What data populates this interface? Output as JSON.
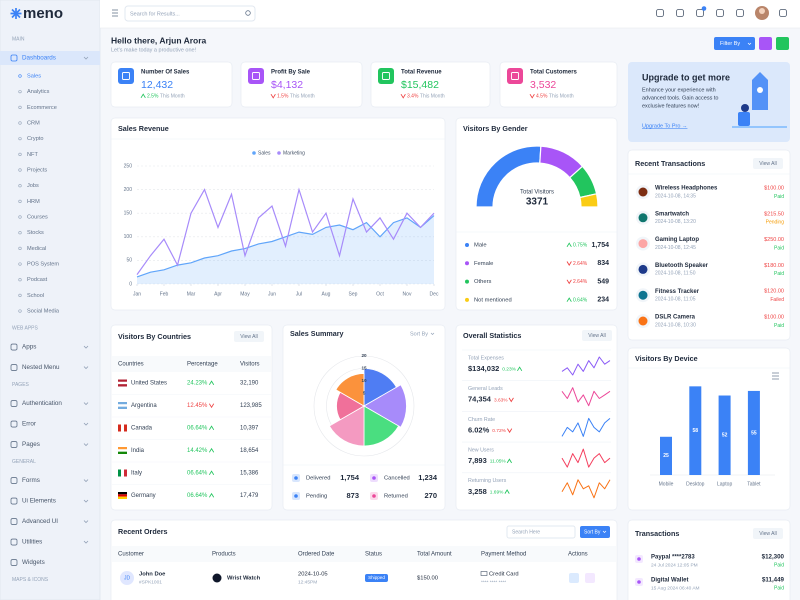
{
  "sidebar": {
    "logo": "meno",
    "sections": [
      {
        "title": "MAIN",
        "items": [
          {
            "label": "Dashboards",
            "active": true,
            "has_submenu": true,
            "children": [
              {
                "label": "Sales",
                "active": true
              },
              {
                "label": "Analytics"
              },
              {
                "label": "Ecommerce"
              },
              {
                "label": "CRM"
              },
              {
                "label": "Crypto"
              },
              {
                "label": "NFT"
              },
              {
                "label": "Projects"
              },
              {
                "label": "Jobs"
              },
              {
                "label": "HRM"
              },
              {
                "label": "Courses"
              },
              {
                "label": "Stocks"
              },
              {
                "label": "Medical"
              },
              {
                "label": "POS System"
              },
              {
                "label": "Podcast"
              },
              {
                "label": "School"
              },
              {
                "label": "Social Media"
              }
            ]
          }
        ]
      },
      {
        "title": "WEB APPS",
        "items": [
          {
            "label": "Apps",
            "has_submenu": true
          },
          {
            "label": "Nested Menu",
            "has_submenu": true
          }
        ]
      },
      {
        "title": "PAGES",
        "items": [
          {
            "label": "Authentication",
            "has_submenu": true
          },
          {
            "label": "Error",
            "has_submenu": true
          },
          {
            "label": "Pages",
            "has_submenu": true
          }
        ]
      },
      {
        "title": "GENERAL",
        "items": [
          {
            "label": "Forms",
            "has_submenu": true
          },
          {
            "label": "Ui Elements",
            "has_submenu": true
          },
          {
            "label": "Advanced UI",
            "has_submenu": true
          },
          {
            "label": "Utilities",
            "has_submenu": true
          },
          {
            "label": "Widgets",
            "has_submenu": false
          }
        ]
      },
      {
        "title": "MAPS & ICONS"
      }
    ]
  },
  "header": {
    "search_placeholder": "Search for Results..."
  },
  "greeting": {
    "title": "Hello there, Arjun Arora",
    "subtitle": "Let's make today a productive one!",
    "filter_button": "Filter By"
  },
  "stats": [
    {
      "title": "Number Of Sales",
      "value": "12,432",
      "change": "2.5%",
      "trend": "up",
      "period": "This Month",
      "color": "#3b82f6"
    },
    {
      "title": "Profit By Sale",
      "value": "$4,132",
      "change": "1.5%",
      "trend": "down",
      "period": "This Month",
      "color": "#a855f7"
    },
    {
      "title": "Total Revenue",
      "value": "$15,482",
      "change": "3.4%",
      "trend": "down",
      "period": "This Month",
      "color": "#22c55e"
    },
    {
      "title": "Total Customers",
      "value": "3,532",
      "change": "4.5%",
      "trend": "down",
      "period": "This Month",
      "color": "#ec4899"
    }
  ],
  "upgrade": {
    "title": "Upgrade to get more",
    "lines": [
      "Enhance your experience with",
      "advanced tools. Gain access to",
      "exclusive features now!"
    ],
    "link": "Upgrade To Pro →"
  },
  "sales_revenue": {
    "type": "line",
    "title": "Sales Revenue",
    "x": [
      0,
      0.5,
      1,
      1.5,
      2,
      2.5,
      3,
      3.5,
      4,
      4.5,
      5,
      5.5,
      6,
      6.5,
      7,
      7.5,
      8,
      8.5,
      9,
      9.5,
      10,
      10.5,
      11
    ],
    "xlim": [
      0,
      11
    ],
    "xticks": [
      {
        "value": 0,
        "label": "Jan"
      },
      {
        "value": 1,
        "label": "Feb"
      },
      {
        "value": 2,
        "label": "Mar"
      },
      {
        "value": 3,
        "label": "Apr"
      },
      {
        "value": 4,
        "label": "May"
      },
      {
        "value": 5,
        "label": "Jun"
      },
      {
        "value": 6,
        "label": "Jul"
      },
      {
        "value": 7,
        "label": "Aug"
      },
      {
        "value": 8,
        "label": "Sep"
      },
      {
        "value": 9,
        "label": "Oct"
      },
      {
        "value": 10,
        "label": "Nov"
      },
      {
        "value": 11,
        "label": "Dec"
      }
    ],
    "ylim": [
      0,
      250
    ],
    "yticks": [
      0,
      50,
      100,
      150,
      200,
      250
    ],
    "grid": true,
    "series": [
      {
        "name": "Sales",
        "color": "#60a5fa",
        "area": true,
        "values": [
          15,
          25,
          30,
          40,
          45,
          55,
          60,
          70,
          75,
          85,
          90,
          100,
          110,
          105,
          120,
          125,
          115,
          130,
          100,
          130,
          140,
          120,
          145
        ]
      },
      {
        "name": "Marketing",
        "color": "#a78bfa",
        "area": false,
        "values": [
          20,
          60,
          95,
          40,
          150,
          200,
          120,
          190,
          60,
          140,
          165,
          80,
          200,
          110,
          150,
          60,
          180,
          110,
          140,
          95,
          150,
          120,
          150
        ]
      }
    ]
  },
  "visitors_gender": {
    "type": "gauge",
    "title": "Visitors By Gender",
    "center_label": "Total Visitors",
    "total": 3371,
    "categories": [
      "Male",
      "Female",
      "Others",
      "Not mentioned"
    ],
    "values": [
      1754,
      834,
      549,
      234
    ],
    "value_labels": [
      "1,754",
      "834",
      "549",
      "234"
    ],
    "colors": [
      "#3b82f6",
      "#a855f7",
      "#22c55e",
      "#facc15"
    ],
    "changes": [
      "0.75%",
      "2.64%",
      "2.64%",
      "0.64%"
    ],
    "trends": [
      "up",
      "down",
      "down",
      "up"
    ]
  },
  "countries": {
    "title": "Visitors By Countries",
    "view_all": "View All",
    "columns": [
      "Countries",
      "Percentage",
      "Visitors"
    ],
    "rows": [
      [
        "United States",
        "24.23%",
        "32,190"
      ],
      [
        "Argentina",
        "12.45%",
        "123,985"
      ],
      [
        "Canada",
        "06.64%",
        "10,397"
      ],
      [
        "India",
        "14.42%",
        "18,654"
      ],
      [
        "Italy",
        "06.64%",
        "15,386"
      ],
      [
        "Germany",
        "06.64%",
        "17,479"
      ]
    ],
    "trends": [
      "up",
      "down",
      "up",
      "up",
      "up",
      "up"
    ]
  },
  "sales_summary": {
    "type": "polar",
    "title": "Sales Summary",
    "sort_label": "Sort By",
    "values": [
      15,
      17,
      16,
      16,
      11,
      13
    ],
    "colors": [
      "#4f7df3",
      "#a78bfa",
      "#4ade80",
      "#f49ac1",
      "#f0709a",
      "#fb923c"
    ],
    "rlim": [
      0,
      20
    ],
    "rticks": [
      5,
      10,
      15,
      20
    ],
    "stats": [
      {
        "label": "Delivered",
        "value": "1,754",
        "color": "#3b82f6"
      },
      {
        "label": "Cancelled",
        "value": "1,234",
        "color": "#a855f7"
      },
      {
        "label": "Pending",
        "value": "873",
        "color": "#3b82f6"
      },
      {
        "label": "Returned",
        "value": "270",
        "color": "#ec4899"
      }
    ]
  },
  "overall_statistics": {
    "type": "sparkline",
    "title": "Overall Statistics",
    "view_all": "View All",
    "items": [
      {
        "label": "Total Expenses",
        "value": "$134,032",
        "change": "0.23%",
        "trend": "up",
        "color": "#8b5cf6",
        "values": [
          6,
          7,
          5,
          8,
          6,
          9,
          7,
          10,
          8,
          9
        ]
      },
      {
        "label": "General Leads",
        "value": "74,354",
        "change": "3.63%",
        "trend": "down",
        "color": "#ec4899",
        "values": [
          8,
          6,
          9,
          5,
          7,
          4,
          8,
          6,
          7,
          8
        ]
      },
      {
        "label": "Churn Rate",
        "value": "6.02%",
        "change": "0.72%",
        "trend": "down",
        "color": "#3b82f6",
        "values": [
          5,
          7,
          6,
          8,
          5,
          9,
          7,
          6,
          8,
          9
        ]
      },
      {
        "label": "New Users",
        "value": "7,893",
        "change": "11.05%",
        "trend": "up",
        "color": "#f43f5e",
        "values": [
          7,
          5,
          8,
          6,
          9,
          5,
          7,
          8,
          6,
          7
        ]
      },
      {
        "label": "Returning Users",
        "value": "3,258",
        "change": "1.69%",
        "trend": "up",
        "color": "#f97316",
        "values": [
          5,
          8,
          4,
          9,
          6,
          7,
          3,
          8,
          6,
          9
        ]
      }
    ]
  },
  "recent_transactions": {
    "title": "Recent Transactions",
    "view_all": "View All",
    "items": [
      {
        "name": "Wireless Headphones",
        "time": "2024-10-08, 14:35",
        "amount": "$100.00",
        "status": "Paid",
        "status_color": "#22c55e",
        "avatar_color": "#7c2d12"
      },
      {
        "name": "Smartwatch",
        "time": "2024-10-08, 13:20",
        "amount": "$215.50",
        "status": "Pending",
        "status_color": "#f59e0b",
        "avatar_color": "#0f766e"
      },
      {
        "name": "Gaming Laptop",
        "time": "2024-10-08, 12:45",
        "amount": "$250.00",
        "status": "Paid",
        "status_color": "#22c55e",
        "avatar_color": "#fca5a5"
      },
      {
        "name": "Bluetooth Speaker",
        "time": "2024-10-08, 11:50",
        "amount": "$180.00",
        "status": "Paid",
        "status_color": "#22c55e",
        "avatar_color": "#1e3a8a"
      },
      {
        "name": "Fitness Tracker",
        "time": "2024-10-08, 11:05",
        "amount": "$120.00",
        "status": "Failed",
        "status_color": "#ef4444",
        "avatar_color": "#0e7490"
      },
      {
        "name": "DSLR Camera",
        "time": "2024-10-08, 10:30",
        "amount": "$100.00",
        "status": "Paid",
        "status_color": "#22c55e",
        "avatar_color": "#f97316"
      }
    ]
  },
  "visitors_device": {
    "type": "bar",
    "title": "Visitors By Device",
    "categories": [
      "Mobile",
      "Desktop",
      "Laptop",
      "Tablet"
    ],
    "values": [
      25,
      58,
      52,
      55
    ],
    "color": "#3b82f6",
    "ylim": [
      0,
      70
    ]
  },
  "recent_orders": {
    "title": "Recent Orders",
    "search_placeholder": "Search Here",
    "sort_label": "Sort By",
    "columns": [
      "Customer",
      "Products",
      "Ordered Date",
      "Status",
      "Total Amount",
      "Payment Method",
      "Actions"
    ],
    "rows": [
      {
        "initials": "JD",
        "customer": "John Doe",
        "id": "#SPK1001",
        "product": "Wrist Watch",
        "date": "2024-10-05",
        "time": "12:45PM",
        "status": "Shipped",
        "amount": "$150.00",
        "payment": "Credit Card",
        "card": "**** **** ****"
      }
    ]
  },
  "transactions": {
    "title": "Transactions",
    "view_all": "View All",
    "items": [
      {
        "name": "Paypal ****2783",
        "time": "24 Jul 2024 12:05 PM",
        "amount": "$12,300",
        "status": "Paid"
      },
      {
        "name": "Digital Wallet",
        "time": "15 Aug 2024 06:40 AM",
        "amount": "$11,449",
        "status": "Paid"
      }
    ]
  }
}
